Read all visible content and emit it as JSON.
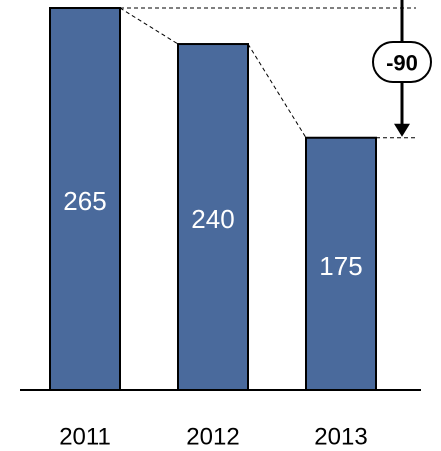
{
  "chart_data": {
    "type": "bar",
    "categories": [
      "2011",
      "2012",
      "2013"
    ],
    "values": [
      265,
      240,
      175
    ],
    "data_labels": [
      "265",
      "240",
      "175"
    ],
    "difference": {
      "label": "-90",
      "from_category": "2011",
      "to_category": "2013"
    },
    "title": "",
    "xlabel": "",
    "ylabel": "",
    "ylim": [
      0,
      265
    ],
    "grid": false,
    "legend": "none",
    "colors": {
      "bar": "#4A6A9C",
      "outline": "#000000",
      "label": "#ffffff"
    }
  }
}
